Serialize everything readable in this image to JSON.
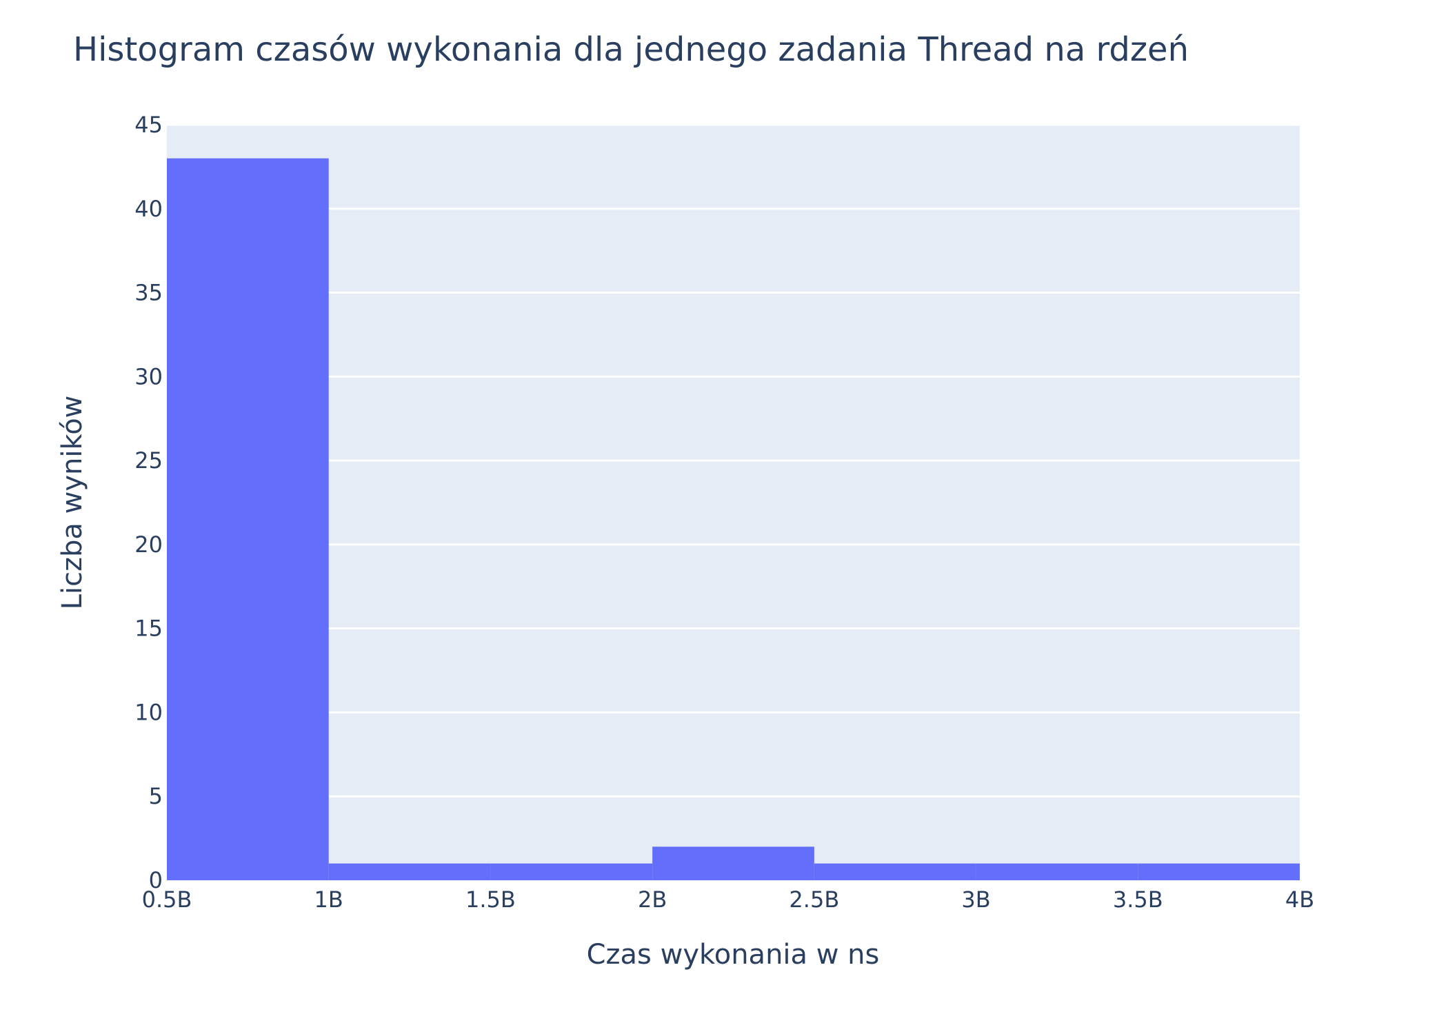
{
  "chart_data": {
    "type": "bar",
    "title": "Histogram czasów wykonania dla jednego zadania Thread na rdzeń",
    "xlabel": "Czas wykonania w ns",
    "ylabel": "Liczba wyników",
    "xlim": [
      0.5,
      4
    ],
    "ylim": [
      0,
      45
    ],
    "x_ticks": [
      {
        "value": 0.5,
        "label": "0.5B"
      },
      {
        "value": 1,
        "label": "1B"
      },
      {
        "value": 1.5,
        "label": "1.5B"
      },
      {
        "value": 2,
        "label": "2B"
      },
      {
        "value": 2.5,
        "label": "2.5B"
      },
      {
        "value": 3,
        "label": "3B"
      },
      {
        "value": 3.5,
        "label": "3.5B"
      },
      {
        "value": 4,
        "label": "4B"
      }
    ],
    "y_ticks": [
      0,
      5,
      10,
      15,
      20,
      25,
      30,
      35,
      40,
      45
    ],
    "x_unit_multiplier": "B",
    "bins": [
      {
        "start": 0.5,
        "end": 1.0,
        "count": 43
      },
      {
        "start": 1.0,
        "end": 1.5,
        "count": 1
      },
      {
        "start": 1.5,
        "end": 2.0,
        "count": 1
      },
      {
        "start": 2.0,
        "end": 2.5,
        "count": 2
      },
      {
        "start": 2.5,
        "end": 3.0,
        "count": 1
      },
      {
        "start": 3.0,
        "end": 3.5,
        "count": 1
      },
      {
        "start": 3.5,
        "end": 4.0,
        "count": 1
      }
    ],
    "grid": true,
    "legend": "none",
    "colors": {
      "bar": "#636efa",
      "plot_background": "#e5ecf6",
      "grid": "#ffffff",
      "text": "#2a3f5f"
    }
  }
}
